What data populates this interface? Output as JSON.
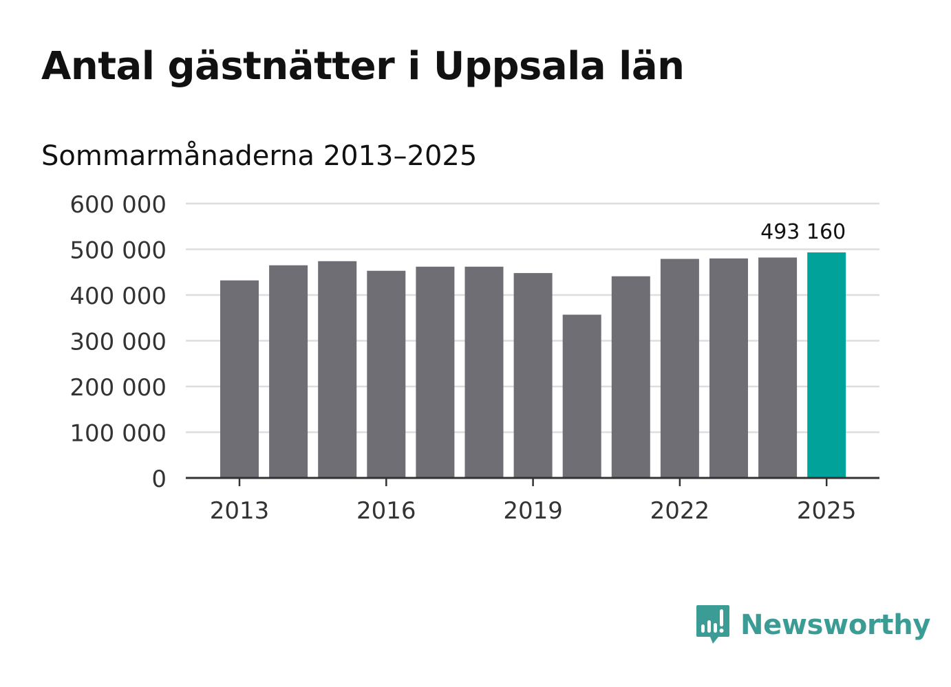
{
  "title": "Antal gästnätter i Uppsala län",
  "subtitle": "Sommarmånaderna 2013–2025",
  "brand": {
    "name": "Newsworthy",
    "color": "#3b9c95",
    "icon": "newsworthy-logo-icon"
  },
  "colors": {
    "bar": "#6f6e75",
    "highlight": "#00a29a",
    "grid": "#dddddd",
    "axis": "#333333",
    "text": "#333333"
  },
  "chart_data": {
    "type": "bar",
    "title": "Antal gästnätter i Uppsala län",
    "subtitle": "Sommarmånaderna 2013–2025",
    "xlabel": "",
    "ylabel": "",
    "categories": [
      "2013",
      "2014",
      "2015",
      "2016",
      "2017",
      "2018",
      "2019",
      "2020",
      "2021",
      "2022",
      "2023",
      "2024",
      "2025"
    ],
    "values": [
      432000,
      465000,
      474000,
      453000,
      462000,
      462000,
      448000,
      357000,
      441000,
      479000,
      480000,
      482000,
      493160
    ],
    "highlight_index": 12,
    "data_labels": [
      {
        "index": 12,
        "text": "493 160"
      }
    ],
    "x_tick_labels": [
      "2013",
      "2016",
      "2019",
      "2022",
      "2025"
    ],
    "y_ticks": [
      0,
      100000,
      200000,
      300000,
      400000,
      500000,
      600000
    ],
    "y_tick_labels": [
      "0",
      "100 000",
      "200 000",
      "300 000",
      "400 000",
      "500 000",
      "600 000"
    ],
    "ylim": [
      0,
      600000
    ],
    "grid": true,
    "legend": "none"
  }
}
